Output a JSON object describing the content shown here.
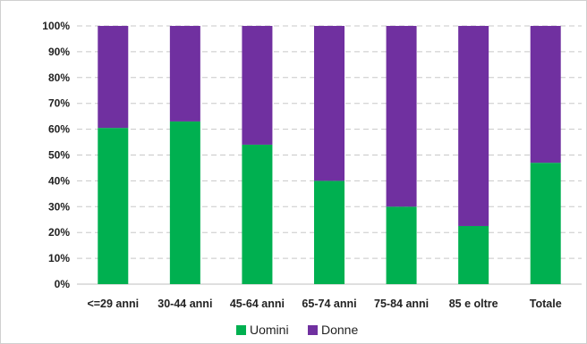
{
  "chart_data": {
    "type": "bar",
    "stacked": true,
    "normalized": true,
    "categories": [
      "<=29 anni",
      "30-44 anni",
      "45-64 anni",
      "65-74 anni",
      "75-84 anni",
      "85 e oltre",
      "Totale"
    ],
    "series": [
      {
        "name": "Uomini",
        "color": "#00b050",
        "values": [
          60.5,
          63,
          54,
          40,
          30,
          22.5,
          47
        ]
      },
      {
        "name": "Donne",
        "color": "#7030a0",
        "values": [
          39.5,
          37,
          46,
          60,
          70,
          77.5,
          53
        ]
      }
    ],
    "y_ticks": [
      "0%",
      "10%",
      "20%",
      "30%",
      "40%",
      "50%",
      "60%",
      "70%",
      "80%",
      "90%",
      "100%"
    ],
    "ylim": [
      0,
      100
    ],
    "grid": true,
    "gridline_style": "dashed",
    "legend_position": "bottom"
  }
}
